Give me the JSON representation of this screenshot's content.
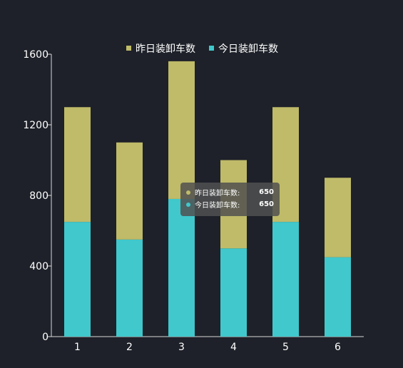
{
  "chart_data": {
    "type": "bar",
    "stacked": true,
    "categories": [
      "1",
      "2",
      "3",
      "4",
      "5",
      "6"
    ],
    "series": [
      {
        "name": "今日装卸车数",
        "values": [
          650,
          550,
          780,
          500,
          650,
          450
        ]
      },
      {
        "name": "昨日装卸车数",
        "values": [
          650,
          550,
          780,
          500,
          650,
          450
        ]
      }
    ],
    "ylim": [
      0,
      1600
    ],
    "yticks": [
      0,
      400,
      800,
      1200,
      1600
    ],
    "legend_position": "top-center",
    "grid": false
  },
  "colors": {
    "today": "#40c8cc",
    "yesterday": "#bfbb69",
    "axis": "#d9d9d9",
    "background": "#1e2129"
  },
  "tooltip": {
    "rows": [
      {
        "label": "昨日装卸车数:",
        "value": "650"
      },
      {
        "label": "今日装卸车数:",
        "value": "650"
      }
    ]
  }
}
